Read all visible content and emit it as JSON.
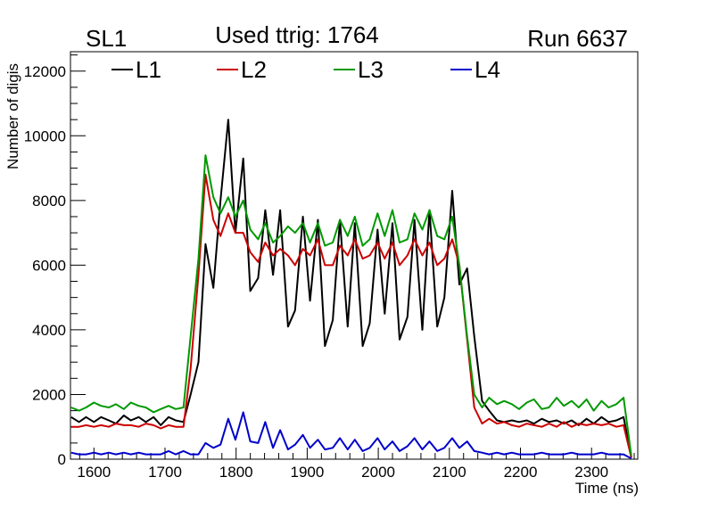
{
  "chart_data": {
    "type": "line",
    "title": "Used ttrig: 1764",
    "top_left_label": "SL1",
    "top_right_label": "Run 6637",
    "xlabel": "Time (ns)",
    "ylabel": "Number of digis",
    "xlim": [
      1567,
      2365
    ],
    "ylim": [
      0,
      12600
    ],
    "xticks": [
      1600,
      1700,
      1800,
      1900,
      2000,
      2100,
      2200,
      2300
    ],
    "yticks": [
      0,
      2000,
      4000,
      6000,
      8000,
      10000,
      12000
    ],
    "x": [
      1568,
      1579,
      1589,
      1600,
      1610,
      1621,
      1631,
      1642,
      1652,
      1663,
      1673,
      1684,
      1694,
      1705,
      1715,
      1726,
      1736,
      1747,
      1757,
      1768,
      1778,
      1789,
      1799,
      1810,
      1820,
      1831,
      1841,
      1852,
      1862,
      1873,
      1883,
      1894,
      1904,
      1915,
      1925,
      1936,
      1946,
      1957,
      1967,
      1978,
      1988,
      1999,
      2009,
      2020,
      2030,
      2041,
      2051,
      2062,
      2072,
      2083,
      2093,
      2104,
      2114,
      2125,
      2135,
      2146,
      2156,
      2167,
      2177,
      2188,
      2198,
      2209,
      2219,
      2230,
      2240,
      2251,
      2261,
      2272,
      2282,
      2293,
      2303,
      2314,
      2324,
      2335,
      2345,
      2356
    ],
    "series": [
      {
        "name": "L1",
        "color": "#000000",
        "values": [
          1300,
          1150,
          1300,
          1150,
          1300,
          1200,
          1100,
          1350,
          1200,
          1300,
          1150,
          1300,
          1050,
          1300,
          1200,
          1150,
          2000,
          3000,
          6650,
          5300,
          8000,
          10500,
          7000,
          9300,
          5200,
          5600,
          7700,
          5700,
          7700,
          4100,
          4600,
          7500,
          4900,
          7400,
          3500,
          4300,
          7400,
          4100,
          7300,
          3500,
          4200,
          7100,
          4500,
          7300,
          3700,
          4400,
          7400,
          4000,
          7700,
          4100,
          5000,
          8300,
          5400,
          5900,
          3800,
          1800,
          1500,
          1200,
          1150,
          1200,
          1150,
          1200,
          1100,
          1250,
          1150,
          1200,
          1100,
          1200,
          1050,
          1250,
          1100,
          1300,
          1150,
          1200,
          1300,
          50
        ]
      },
      {
        "name": "L2",
        "color": "#cc0000",
        "values": [
          1000,
          1000,
          1050,
          1000,
          1050,
          1000,
          1100,
          1050,
          1050,
          1000,
          1100,
          1050,
          950,
          1050,
          1000,
          1000,
          2800,
          5700,
          8800,
          7400,
          6900,
          7600,
          7000,
          7000,
          6400,
          6100,
          6700,
          6300,
          6500,
          6300,
          6000,
          6500,
          6300,
          6800,
          6000,
          6000,
          6600,
          6300,
          6800,
          6200,
          6300,
          6700,
          6200,
          6700,
          6000,
          6300,
          6800,
          6300,
          6700,
          6000,
          6200,
          6800,
          6000,
          3700,
          1600,
          1100,
          1250,
          1100,
          1150,
          1050,
          1000,
          1100,
          1050,
          1000,
          1100,
          1000,
          1150,
          1000,
          1100,
          1050,
          1100,
          1050,
          1100,
          1000,
          1050,
          50
        ]
      },
      {
        "name": "L3",
        "color": "#009900",
        "values": [
          1600,
          1500,
          1600,
          1750,
          1650,
          1600,
          1700,
          1550,
          1750,
          1650,
          1600,
          1450,
          1550,
          1650,
          1550,
          1600,
          3800,
          6200,
          9400,
          8100,
          7600,
          8100,
          7500,
          8000,
          7100,
          6800,
          7300,
          6700,
          6900,
          7200,
          7000,
          7300,
          6700,
          7300,
          6600,
          6700,
          7400,
          6900,
          7500,
          6600,
          6800,
          7600,
          6900,
          7700,
          6700,
          6800,
          7600,
          7100,
          7700,
          6900,
          6800,
          7500,
          6000,
          3800,
          2000,
          1600,
          1900,
          1700,
          1800,
          1700,
          1550,
          1750,
          1850,
          1550,
          1600,
          1900,
          1650,
          1800,
          1600,
          1850,
          1500,
          1800,
          1600,
          1700,
          1900,
          100
        ]
      },
      {
        "name": "L4",
        "color": "#0000cc",
        "values": [
          200,
          150,
          150,
          200,
          150,
          200,
          150,
          200,
          150,
          200,
          150,
          150,
          150,
          250,
          150,
          250,
          150,
          150,
          500,
          350,
          450,
          1250,
          600,
          1450,
          550,
          500,
          1150,
          350,
          900,
          300,
          450,
          750,
          350,
          600,
          300,
          350,
          650,
          300,
          600,
          250,
          350,
          650,
          300,
          550,
          250,
          400,
          650,
          300,
          550,
          250,
          350,
          650,
          350,
          550,
          250,
          200,
          150,
          200,
          150,
          200,
          150,
          150,
          150,
          200,
          150,
          150,
          150,
          200,
          150,
          150,
          150,
          200,
          150,
          150,
          150,
          20
        ]
      }
    ],
    "legend": "top, horizontal",
    "grid": false
  }
}
